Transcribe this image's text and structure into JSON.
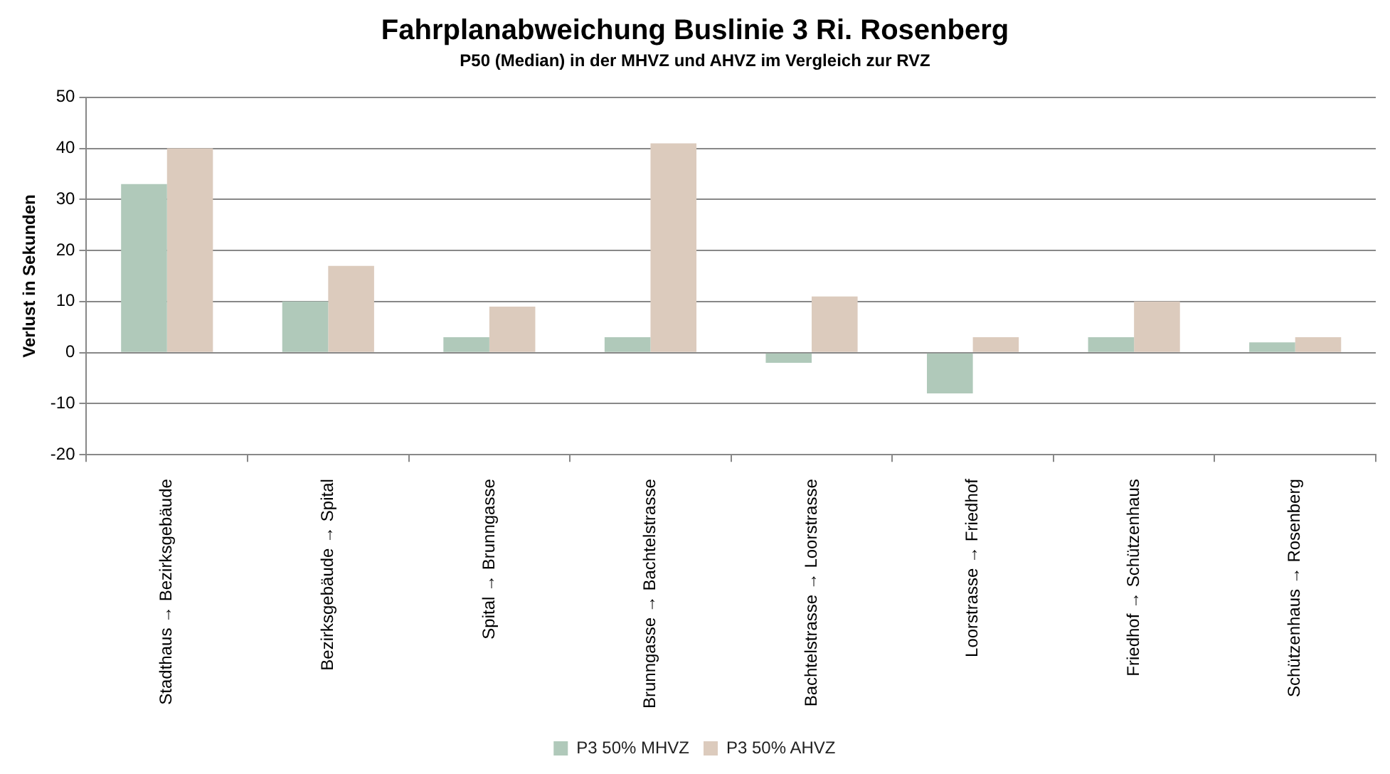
{
  "chart_data": {
    "type": "bar",
    "title": "Fahrplanabweichung Buslinie 3 Ri. Rosenberg",
    "subtitle": "P50 (Median) in der MHVZ und AHVZ im Vergleich zur RVZ",
    "ylabel": "Verlust in Sekunden",
    "categories": [
      "Stadthaus → Bezirksgebäude",
      "Bezirksgebäude → Spital",
      "Spital → Brunngasse",
      "Brunngasse → Bachtelstrasse",
      "Bachtelstrasse → Loorstrasse",
      "Loorstrasse → Friedhof",
      "Friedhof → Schützenhaus",
      "Schützenhaus → Rosenberg"
    ],
    "series": [
      {
        "name": "P3 50% MHVZ",
        "color": "#b0c9ba",
        "values": [
          33,
          10,
          3,
          3,
          -2,
          -8,
          3,
          2
        ]
      },
      {
        "name": "P3 50% AHVZ",
        "color": "#dccbbd",
        "values": [
          40,
          17,
          9,
          41,
          11,
          3,
          10,
          3
        ]
      }
    ],
    "ylim": [
      -20,
      50
    ],
    "yticks": [
      -20,
      -10,
      0,
      10,
      20,
      30,
      40,
      50
    ],
    "grid": "y",
    "legend": "bottom"
  }
}
